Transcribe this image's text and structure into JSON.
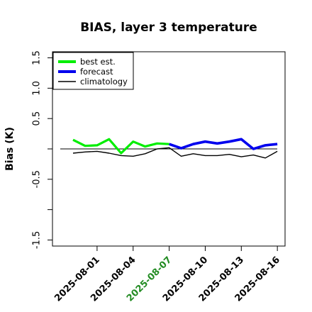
{
  "chart_data": {
    "type": "line",
    "title": "BIAS, layer 3 temperature",
    "xlabel": "",
    "ylabel": "Bias (K)",
    "ylim": [
      -1.6,
      1.6
    ],
    "yticks": [
      "1.5",
      "1.0",
      "0.5",
      "",
      "-0.5",
      "",
      "-1.5"
    ],
    "ytick_values": [
      1.5,
      1.0,
      0.5,
      0.0,
      -0.5,
      -1.0,
      -1.5
    ],
    "x_dates": [
      "2025-07-30",
      "2025-07-31",
      "2025-08-01",
      "2025-08-02",
      "2025-08-03",
      "2025-08-04",
      "2025-08-05",
      "2025-08-06",
      "2025-08-07",
      "2025-08-08",
      "2025-08-09",
      "2025-08-10",
      "2025-08-11",
      "2025-08-12",
      "2025-08-13",
      "2025-08-14",
      "2025-08-15",
      "2025-08-16"
    ],
    "xticks": [
      {
        "label": "2025-08-01",
        "color": "#000000"
      },
      {
        "label": "2025-08-04",
        "color": "#000000"
      },
      {
        "label": "2025-08-07",
        "color": "#228b22"
      },
      {
        "label": "2025-08-10",
        "color": "#000000"
      },
      {
        "label": "2025-08-13",
        "color": "#000000"
      },
      {
        "label": "2025-08-16",
        "color": "#000000"
      }
    ],
    "zero_line": true,
    "legend_position": "top-left",
    "series": [
      {
        "name": "best est.",
        "color": "#00ee00",
        "dates": [
          "2025-07-30",
          "2025-07-31",
          "2025-08-01",
          "2025-08-02",
          "2025-08-03",
          "2025-08-04",
          "2025-08-05",
          "2025-08-06",
          "2025-08-07"
        ],
        "values": [
          0.15,
          0.05,
          0.06,
          0.16,
          -0.07,
          0.12,
          0.04,
          0.09,
          0.08
        ]
      },
      {
        "name": "forecast",
        "color": "#0000ee",
        "dates": [
          "2025-08-07",
          "2025-08-08",
          "2025-08-09",
          "2025-08-10",
          "2025-08-11",
          "2025-08-12",
          "2025-08-13",
          "2025-08-14",
          "2025-08-15",
          "2025-08-16"
        ],
        "values": [
          0.08,
          0.01,
          0.08,
          0.12,
          0.09,
          0.12,
          0.16,
          0.0,
          0.06,
          0.08
        ]
      },
      {
        "name": "climatology",
        "color": "#000000",
        "dates": [
          "2025-07-30",
          "2025-07-31",
          "2025-08-01",
          "2025-08-02",
          "2025-08-03",
          "2025-08-04",
          "2025-08-05",
          "2025-08-06",
          "2025-08-07",
          "2025-08-08",
          "2025-08-09",
          "2025-08-10",
          "2025-08-11",
          "2025-08-12",
          "2025-08-13",
          "2025-08-14",
          "2025-08-15",
          "2025-08-16"
        ],
        "values": [
          -0.07,
          -0.05,
          -0.04,
          -0.07,
          -0.11,
          -0.12,
          -0.08,
          0.0,
          0.02,
          -0.12,
          -0.08,
          -0.11,
          -0.11,
          -0.09,
          -0.13,
          -0.1,
          -0.15,
          -0.04
        ]
      }
    ]
  }
}
